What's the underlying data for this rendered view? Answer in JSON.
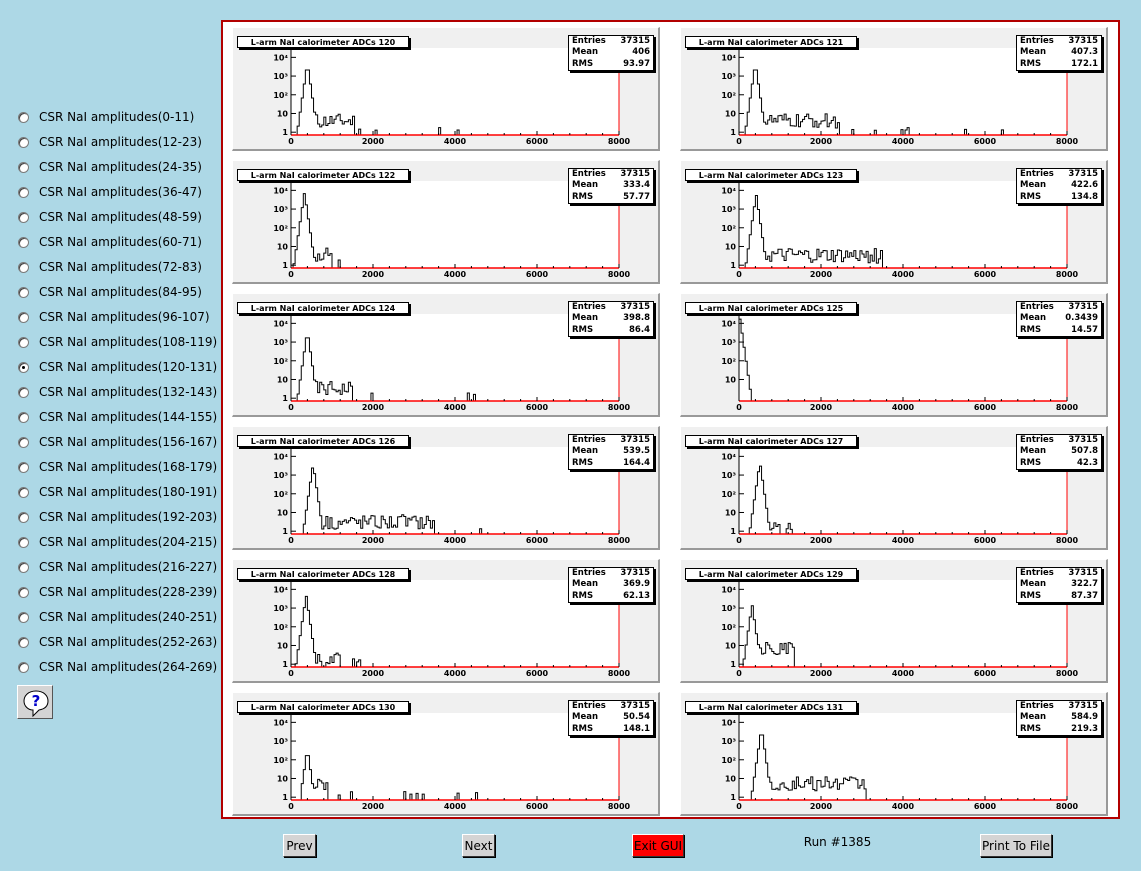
{
  "sidebar": {
    "selected_index": 10,
    "items": [
      {
        "label": "CSR NaI amplitudes(0-11)"
      },
      {
        "label": "CSR NaI amplitudes(12-23)"
      },
      {
        "label": "CSR NaI amplitudes(24-35)"
      },
      {
        "label": "CSR NaI amplitudes(36-47)"
      },
      {
        "label": "CSR NaI amplitudes(48-59)"
      },
      {
        "label": "CSR NaI amplitudes(60-71)"
      },
      {
        "label": "CSR NaI amplitudes(72-83)"
      },
      {
        "label": "CSR NaI amplitudes(84-95)"
      },
      {
        "label": "CSR NaI amplitudes(96-107)"
      },
      {
        "label": "CSR NaI amplitudes(108-119)"
      },
      {
        "label": "CSR NaI amplitudes(120-131)"
      },
      {
        "label": "CSR NaI amplitudes(132-143)"
      },
      {
        "label": "CSR NaI amplitudes(144-155)"
      },
      {
        "label": "CSR NaI amplitudes(156-167)"
      },
      {
        "label": "CSR NaI amplitudes(168-179)"
      },
      {
        "label": "CSR NaI amplitudes(180-191)"
      },
      {
        "label": "CSR NaI amplitudes(192-203)"
      },
      {
        "label": "CSR NaI amplitudes(204-215)"
      },
      {
        "label": "CSR NaI amplitudes(216-227)"
      },
      {
        "label": "CSR NaI amplitudes(228-239)"
      },
      {
        "label": "CSR NaI amplitudes(240-251)"
      },
      {
        "label": "CSR NaI amplitudes(252-263)"
      },
      {
        "label": "CSR NaI amplitudes(264-269)"
      }
    ],
    "help_icon": "question-bubble-icon"
  },
  "buttons": {
    "prev": "Prev",
    "next": "Next",
    "exit": "Exit GUI",
    "print": "Print To File"
  },
  "run_label": "Run #1385",
  "colors": {
    "background": "#add8e6",
    "frame": "#b20000",
    "exit_button": "#ff0000",
    "axis_line": "#ff0000"
  },
  "chart_data": [
    {
      "type": "histogram",
      "title": "L-arm NaI calorimeter ADCs 120",
      "x_ticks": [
        "0",
        "2000",
        "4000",
        "6000",
        "8000"
      ],
      "xlim": [
        0,
        8000
      ],
      "y_scale": "log",
      "y_ticks": [
        "1",
        "10",
        "10²",
        "10³",
        "10⁴"
      ],
      "stats": {
        "entries_label": "Entries",
        "entries": "37315",
        "mean_label": "Mean",
        "mean": "406",
        "rms_label": "RMS",
        "rms": "93.97"
      },
      "peak_x": 400,
      "peak_log": 3.7,
      "continuum_x": [
        550,
        1550
      ],
      "continuum_log": 0.6,
      "sparse_max_x": 4800
    },
    {
      "type": "histogram",
      "title": "L-arm NaI calorimeter ADCs 121",
      "x_ticks": [
        "0",
        "2000",
        "4000",
        "6000",
        "8000"
      ],
      "xlim": [
        0,
        8000
      ],
      "y_scale": "log",
      "y_ticks": [
        "1",
        "10",
        "10²",
        "10³",
        "10⁴"
      ],
      "stats": {
        "entries_label": "Entries",
        "entries": "37315",
        "mean_label": "Mean",
        "mean": "407.3",
        "rms_label": "RMS",
        "rms": "172.1"
      },
      "peak_x": 400,
      "peak_log": 3.7,
      "continuum_x": [
        550,
        2450
      ],
      "continuum_log": 0.6,
      "sparse_max_x": 6900
    },
    {
      "type": "histogram",
      "title": "L-arm NaI calorimeter ADCs 122",
      "x_ticks": [
        "0",
        "2000",
        "4000",
        "6000",
        "8000"
      ],
      "xlim": [
        0,
        8000
      ],
      "y_scale": "log",
      "y_ticks": [
        "1",
        "10",
        "10²",
        "10³",
        "10⁴"
      ],
      "stats": {
        "entries_label": "Entries",
        "entries": "37315",
        "mean_label": "Mean",
        "mean": "333.4",
        "rms_label": "RMS",
        "rms": "57.77"
      },
      "peak_x": 330,
      "peak_log": 3.9,
      "continuum_x": [
        450,
        1000
      ],
      "continuum_log": 0.6,
      "sparse_max_x": 2500
    },
    {
      "type": "histogram",
      "title": "L-arm NaI calorimeter ADCs 123",
      "x_ticks": [
        "0",
        "2000",
        "4000",
        "6000",
        "8000"
      ],
      "xlim": [
        0,
        8000
      ],
      "y_scale": "log",
      "y_ticks": [
        "1",
        "10",
        "10²",
        "10³",
        "10⁴"
      ],
      "stats": {
        "entries_label": "Entries",
        "entries": "37315",
        "mean_label": "Mean",
        "mean": "422.6",
        "rms_label": "RMS",
        "rms": "134.8"
      },
      "peak_x": 420,
      "peak_log": 3.8,
      "continuum_x": [
        550,
        3500
      ],
      "continuum_log": 0.5,
      "sparse_max_x": 5000
    },
    {
      "type": "histogram",
      "title": "L-arm NaI calorimeter ADCs 124",
      "x_ticks": [
        "0",
        "2000",
        "4000",
        "6000",
        "8000"
      ],
      "xlim": [
        0,
        8000
      ],
      "y_scale": "log",
      "y_ticks": [
        "1",
        "10",
        "10²",
        "10³",
        "10⁴"
      ],
      "stats": {
        "entries_label": "Entries",
        "entries": "37315",
        "mean_label": "Mean",
        "mean": "398.8",
        "rms_label": "RMS",
        "rms": "86.4"
      },
      "peak_x": 400,
      "peak_log": 3.6,
      "continuum_x": [
        550,
        1500
      ],
      "continuum_log": 0.5,
      "sparse_max_x": 4600
    },
    {
      "type": "histogram",
      "title": "L-arm NaI calorimeter ADCs 125",
      "x_ticks": [
        "0",
        "2000",
        "4000",
        "6000",
        "8000"
      ],
      "xlim": [
        0,
        8000
      ],
      "y_scale": "log",
      "y_ticks": [
        "10",
        "10²",
        "10³",
        "10⁴"
      ],
      "stats": {
        "entries_label": "Entries",
        "entries": "37315",
        "mean_label": "Mean",
        "mean": "0.3439",
        "rms_label": "RMS",
        "rms": "14.57"
      },
      "peak_x": 0,
      "peak_log": 4.6,
      "continuum_x": [
        500,
        520
      ],
      "continuum_log": 0.4,
      "sparse_max_x": 650
    },
    {
      "type": "histogram",
      "title": "L-arm NaI calorimeter ADCs 126",
      "x_ticks": [
        "0",
        "2000",
        "4000",
        "6000",
        "8000"
      ],
      "xlim": [
        0,
        8000
      ],
      "y_scale": "log",
      "y_ticks": [
        "1",
        "10",
        "10²",
        "10³",
        "10⁴"
      ],
      "stats": {
        "entries_label": "Entries",
        "entries": "37315",
        "mean_label": "Mean",
        "mean": "539.5",
        "rms_label": "RMS",
        "rms": "164.4"
      },
      "peak_x": 540,
      "peak_log": 3.6,
      "continuum_x": [
        700,
        3500
      ],
      "continuum_log": 0.5,
      "sparse_max_x": 4700
    },
    {
      "type": "histogram",
      "title": "L-arm NaI calorimeter ADCs 127",
      "x_ticks": [
        "0",
        "2000",
        "4000",
        "6000",
        "8000"
      ],
      "xlim": [
        0,
        8000
      ],
      "y_scale": "log",
      "y_ticks": [
        "1",
        "10",
        "10²",
        "10³",
        "10⁴"
      ],
      "stats": {
        "entries_label": "Entries",
        "entries": "37315",
        "mean_label": "Mean",
        "mean": "507.8",
        "rms_label": "RMS",
        "rms": "42.3"
      },
      "peak_x": 510,
      "peak_log": 3.7,
      "continuum_x": [
        650,
        1300
      ],
      "continuum_log": 0.3,
      "sparse_max_x": 2000
    },
    {
      "type": "histogram",
      "title": "L-arm NaI calorimeter ADCs 128",
      "x_ticks": [
        "0",
        "2000",
        "4000",
        "6000",
        "8000"
      ],
      "xlim": [
        0,
        8000
      ],
      "y_scale": "log",
      "y_ticks": [
        "1",
        "10",
        "10²",
        "10³",
        "10⁴"
      ],
      "stats": {
        "entries_label": "Entries",
        "entries": "37315",
        "mean_label": "Mean",
        "mean": "369.9",
        "rms_label": "RMS",
        "rms": "62.13"
      },
      "peak_x": 370,
      "peak_log": 3.7,
      "continuum_x": [
        500,
        1200
      ],
      "continuum_log": 0.3,
      "sparse_max_x": 2000
    },
    {
      "type": "histogram",
      "title": "L-arm NaI calorimeter ADCs 129",
      "x_ticks": [
        "0",
        "2000",
        "4000",
        "6000",
        "8000"
      ],
      "xlim": [
        0,
        8000
      ],
      "y_scale": "log",
      "y_ticks": [
        "1",
        "10",
        "10²",
        "10³",
        "10⁴"
      ],
      "stats": {
        "entries_label": "Entries",
        "entries": "37315",
        "mean_label": "Mean",
        "mean": "322.7",
        "rms_label": "RMS",
        "rms": "87.37"
      },
      "peak_x": 320,
      "peak_log": 3.2,
      "continuum_x": [
        450,
        1350
      ],
      "continuum_log": 0.8,
      "sparse_max_x": 1500
    },
    {
      "type": "histogram",
      "title": "L-arm NaI calorimeter ADCs 130",
      "x_ticks": [
        "0",
        "2000",
        "4000",
        "6000",
        "8000"
      ],
      "xlim": [
        0,
        8000
      ],
      "y_scale": "log",
      "y_ticks": [
        "1",
        "10",
        "10²",
        "10³",
        "10⁴"
      ],
      "stats": {
        "entries_label": "Entries",
        "entries": "37315",
        "mean_label": "Mean",
        "mean": "50.54",
        "rms_label": "RMS",
        "rms": "148.1"
      },
      "peak_x": 400,
      "peak_log": 2.6,
      "continuum_x": [
        500,
        900
      ],
      "continuum_log": 0.8,
      "sparse_max_x": 5100
    },
    {
      "type": "histogram",
      "title": "L-arm NaI calorimeter ADCs 131",
      "x_ticks": [
        "0",
        "2000",
        "4000",
        "6000",
        "8000"
      ],
      "xlim": [
        0,
        8000
      ],
      "y_scale": "log",
      "y_ticks": [
        "1",
        "10",
        "10²",
        "10³",
        "10⁴"
      ],
      "stats": {
        "entries_label": "Entries",
        "entries": "37315",
        "mean_label": "Mean",
        "mean": "584.9",
        "rms_label": "RMS",
        "rms": "219.3"
      },
      "peak_x": 550,
      "peak_log": 3.7,
      "continuum_x": [
        700,
        3100
      ],
      "continuum_log": 0.7,
      "sparse_max_x": 3300
    }
  ]
}
